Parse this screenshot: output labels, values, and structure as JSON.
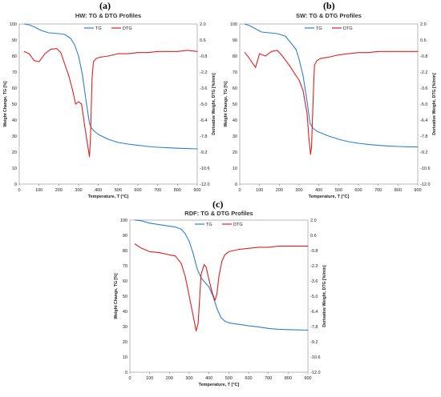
{
  "chart_data": [
    {
      "type": "line",
      "panel_label": "(a)",
      "title": "HW: TG & DTG Profiles",
      "xlabel": "Temperature, T [°C]",
      "ylabel": "Weight Change, TG [%]",
      "y2label": "Derivative Weight, DTG [%/min]",
      "xlim": [
        0,
        900
      ],
      "ylim": [
        0,
        100
      ],
      "y2lim": [
        -12.0,
        2.0
      ],
      "xticks": [
        "0",
        "100",
        "200",
        "300",
        "400",
        "500",
        "600",
        "700",
        "800",
        "900"
      ],
      "yticks": [
        "0",
        "10",
        "20",
        "30",
        "40",
        "50",
        "60",
        "70",
        "80",
        "90",
        "100"
      ],
      "y2ticks": [
        "2.0",
        "0.6",
        "-0.8",
        "-2.2",
        "-3.6",
        "-5.0",
        "-6.4",
        "-7.8",
        "-9.2",
        "-10.6",
        "-12.0"
      ],
      "legend_placement": "top-center",
      "series": [
        {
          "name": "TG",
          "axis": "left",
          "color": "#2f7fd0",
          "x": [
            25,
            50,
            80,
            110,
            150,
            200,
            230,
            260,
            280,
            300,
            320,
            340,
            355,
            365,
            380,
            400,
            450,
            500,
            550,
            600,
            650,
            700,
            750,
            800,
            850,
            900
          ],
          "y": [
            100,
            99.5,
            98,
            96,
            94.5,
            94,
            93.5,
            91,
            87,
            80,
            68,
            50,
            38,
            35,
            33,
            31,
            28,
            26,
            25,
            24.2,
            23.5,
            23,
            22.7,
            22.4,
            22.2,
            22
          ]
        },
        {
          "name": "DTG",
          "axis": "right",
          "color": "#e02020",
          "x": [
            25,
            50,
            75,
            100,
            130,
            160,
            190,
            210,
            230,
            250,
            270,
            285,
            300,
            315,
            330,
            345,
            355,
            360,
            368,
            375,
            390,
            410,
            450,
            500,
            550,
            600,
            650,
            700,
            750,
            800,
            850,
            900
          ],
          "y": [
            -0.4,
            -0.6,
            -1.2,
            -1.3,
            -0.6,
            -0.2,
            -0.15,
            -0.5,
            -1.5,
            -2.5,
            -3.8,
            -5.0,
            -4.8,
            -5.0,
            -6.8,
            -8.5,
            -9.6,
            -8.0,
            -2.8,
            -1.3,
            -1.0,
            -0.9,
            -0.8,
            -0.6,
            -0.6,
            -0.5,
            -0.5,
            -0.4,
            -0.4,
            -0.4,
            -0.3,
            -0.4
          ]
        }
      ]
    },
    {
      "type": "line",
      "panel_label": "(b)",
      "title": "SW: TG & DTG Profiles",
      "xlabel": "Temperature, T [°C]",
      "ylabel": "Weight Change, TG [%]",
      "y2label": "Derivative Weight, DTG [%/min]",
      "xlim": [
        0,
        900
      ],
      "ylim": [
        0,
        100
      ],
      "y2lim": [
        -12.0,
        2.0
      ],
      "xticks": [
        "0",
        "100",
        "200",
        "300",
        "400",
        "500",
        "600",
        "700",
        "800",
        "900"
      ],
      "yticks": [
        "0",
        "10",
        "20",
        "30",
        "40",
        "50",
        "60",
        "70",
        "80",
        "90",
        "100"
      ],
      "y2ticks": [
        "2.0",
        "0.6",
        "-0.8",
        "-2.2",
        "-3.6",
        "-5.0",
        "-6.4",
        "-7.8",
        "-9.2",
        "-10.6",
        "-12.0"
      ],
      "legend_placement": "top-center",
      "series": [
        {
          "name": "TG",
          "axis": "left",
          "color": "#2f7fd0",
          "x": [
            25,
            50,
            80,
            110,
            150,
            190,
            230,
            260,
            285,
            300,
            320,
            340,
            355,
            370,
            390,
            420,
            450,
            500,
            550,
            600,
            650,
            700,
            750,
            800,
            850,
            900
          ],
          "y": [
            100,
            99,
            97,
            95,
            94.5,
            94,
            92.5,
            88,
            84,
            78,
            68,
            52,
            38,
            35,
            33,
            31.5,
            30,
            28,
            26.5,
            25.5,
            24.8,
            24.2,
            23.8,
            23.5,
            23.3,
            23.2
          ]
        },
        {
          "name": "DTG",
          "axis": "right",
          "color": "#e02020",
          "x": [
            25,
            40,
            60,
            80,
            100,
            130,
            160,
            190,
            220,
            250,
            280,
            300,
            320,
            340,
            350,
            358,
            363,
            370,
            378,
            390,
            410,
            450,
            500,
            550,
            600,
            650,
            700,
            750,
            800,
            850,
            900
          ],
          "y": [
            -0.5,
            -0.8,
            -1.3,
            -1.8,
            -0.6,
            -0.8,
            -0.4,
            -0.3,
            -0.9,
            -1.6,
            -2.4,
            -2.9,
            -3.8,
            -5.8,
            -8.0,
            -9.4,
            -8.8,
            -5.0,
            -1.6,
            -1.2,
            -1.0,
            -0.9,
            -0.7,
            -0.6,
            -0.5,
            -0.5,
            -0.4,
            -0.4,
            -0.4,
            -0.4,
            -0.4
          ]
        }
      ]
    },
    {
      "type": "line",
      "panel_label": "(c)",
      "title": "RDF: TG & DTG Profiles",
      "xlabel": "Temperature, T [°C]",
      "ylabel": "Weight Change, TG [%]",
      "y2label": "Derivative Weight, DTG [%/min]",
      "xlim": [
        0,
        900
      ],
      "ylim": [
        0,
        100
      ],
      "y2lim": [
        -12.0,
        2.0
      ],
      "xticks": [
        "0",
        "100",
        "200",
        "300",
        "400",
        "500",
        "600",
        "700",
        "800",
        "900"
      ],
      "yticks": [
        "0",
        "10",
        "20",
        "30",
        "40",
        "50",
        "60",
        "70",
        "80",
        "90",
        "100"
      ],
      "y2ticks": [
        "2.0",
        "0.6",
        "-0.8",
        "-2.2",
        "-3.6",
        "-5.0",
        "-6.4",
        "-7.8",
        "-9.2",
        "-10.6",
        "-12.0"
      ],
      "legend_placement": "top-center",
      "series": [
        {
          "name": "TG",
          "axis": "left",
          "color": "#2f7fd0",
          "x": [
            25,
            60,
            100,
            150,
            200,
            230,
            260,
            280,
            300,
            320,
            340,
            360,
            380,
            400,
            420,
            440,
            460,
            480,
            500,
            550,
            600,
            650,
            700,
            750,
            800,
            850,
            900
          ],
          "y": [
            100,
            99.5,
            98,
            97,
            96,
            95.5,
            94,
            91,
            86,
            78,
            68,
            62,
            59,
            56,
            50,
            42,
            36,
            33.5,
            32.5,
            31.5,
            30.5,
            29.8,
            28.8,
            28.2,
            28,
            27.8,
            27.7
          ]
        },
        {
          "name": "DTG",
          "axis": "right",
          "color": "#e02020",
          "x": [
            25,
            60,
            100,
            150,
            200,
            230,
            260,
            280,
            300,
            320,
            335,
            345,
            360,
            375,
            385,
            400,
            415,
            430,
            440,
            450,
            465,
            480,
            500,
            550,
            600,
            650,
            700,
            750,
            800,
            850,
            900
          ],
          "y": [
            -0.2,
            -0.6,
            -0.9,
            -1.0,
            -1.2,
            -1.3,
            -2.0,
            -3.2,
            -5.0,
            -6.8,
            -8.2,
            -7.5,
            -3.0,
            -2.1,
            -2.3,
            -3.5,
            -4.6,
            -5.4,
            -4.8,
            -3.2,
            -1.8,
            -1.2,
            -0.9,
            -0.7,
            -0.6,
            -0.5,
            -0.5,
            -0.4,
            -0.4,
            -0.4,
            -0.4
          ]
        }
      ]
    }
  ]
}
